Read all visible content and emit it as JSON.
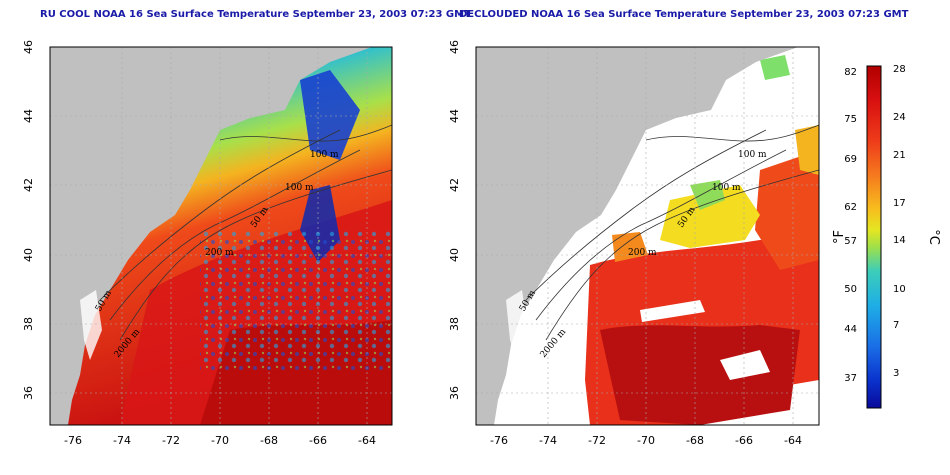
{
  "panels": [
    {
      "title": "RU COOL NOAA 16 Sea Surface Temperature September 23, 2003 07:23 GMT",
      "contour_labels": [
        "100 m",
        "100 m",
        "50 m",
        "200 m",
        "50 m",
        "2000 m"
      ]
    },
    {
      "title": "DECLOUDED NOAA 16 Sea Surface Temperature September 23, 2003 07:23 GMT",
      "contour_labels": [
        "100 m",
        "100 m",
        "50 m",
        "200 m",
        "50 m",
        "2000 m"
      ]
    }
  ],
  "axes": {
    "lon_ticks": [
      "-76",
      "-74",
      "-72",
      "-70",
      "-68",
      "-66",
      "-64"
    ],
    "lat_ticks": [
      "46",
      "44",
      "42",
      "40",
      "38",
      "36"
    ]
  },
  "colorbar": {
    "fahrenheit_ticks": [
      "82",
      "75",
      "69",
      "62",
      "57",
      "50",
      "44",
      "37"
    ],
    "celsius_ticks": [
      "28",
      "24",
      "21",
      "17",
      "14",
      "10",
      "7",
      "3"
    ],
    "fahrenheit_unit": "°F",
    "celsius_unit": "°C",
    "colors": [
      "#b20000",
      "#d81010",
      "#ec3a18",
      "#f46e1e",
      "#f8a81e",
      "#f4dc20",
      "#c8e628",
      "#7ee06a",
      "#38c8c0",
      "#1eaae6",
      "#1a6ee6",
      "#0a32cc",
      "#0a0a9a"
    ]
  },
  "colors": {
    "land": "#c0c0c0",
    "cloud_mask": "#ffffff",
    "title": "#1a1aa8"
  }
}
